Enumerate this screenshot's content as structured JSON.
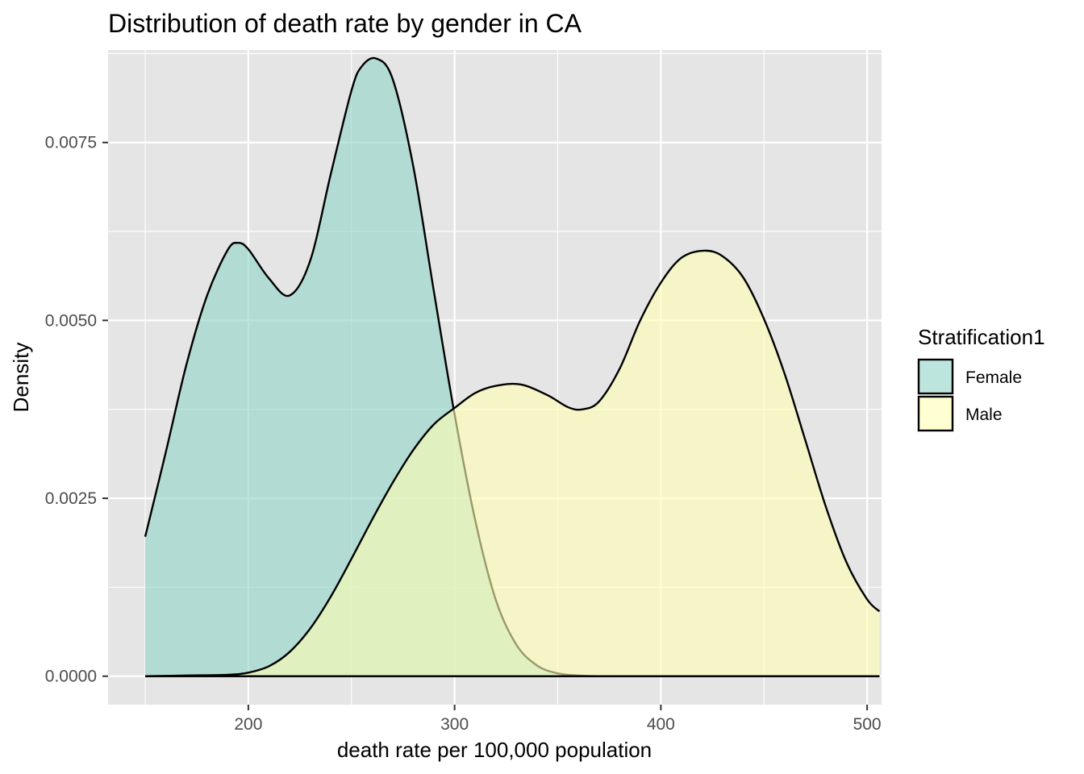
{
  "chart_data": {
    "type": "area",
    "title": "Distribution of death rate by gender in CA",
    "xlabel": "death rate per 100,000 population",
    "ylabel": "Density",
    "xlim": [
      132,
      507
    ],
    "ylim": [
      -0.0004,
      0.0088
    ],
    "x_ticks": [
      200,
      300,
      400,
      500
    ],
    "y_ticks": [
      0.0,
      0.0025,
      0.005,
      0.0075
    ],
    "y_tick_labels": [
      "0.0000",
      "0.0025",
      "0.0050",
      "0.0075"
    ],
    "grid": true,
    "legend": {
      "title": "Stratification1",
      "position": "right"
    },
    "colors": {
      "panel_background": "#e5e5e5",
      "grid": "#ffffff",
      "outline": "#000000"
    },
    "series": [
      {
        "name": "Female",
        "color": "#8dd3c7",
        "opacity": 0.6,
        "x": [
          150,
          160,
          170,
          180,
          190,
          195,
          200,
          210,
          220,
          230,
          240,
          250,
          255,
          262,
          270,
          280,
          290,
          300,
          310,
          320,
          330,
          340,
          350,
          360,
          370,
          380,
          400,
          430,
          450,
          480,
          506
        ],
        "values": [
          0.00196,
          0.00315,
          0.00438,
          0.00535,
          0.00599,
          0.00609,
          0.006,
          0.00559,
          0.00535,
          0.00584,
          0.00706,
          0.00823,
          0.00857,
          0.00868,
          0.00839,
          0.00716,
          0.0054,
          0.00368,
          0.00219,
          0.00107,
          0.00044,
          0.00015,
          4e-05,
          1e-05,
          0.0,
          0.0,
          0.0,
          0.0,
          0.0,
          0.0,
          0.0
        ]
      },
      {
        "name": "Male",
        "color": "#ffffb3",
        "opacity": 0.6,
        "x": [
          150,
          170,
          190,
          200,
          210,
          220,
          230,
          240,
          250,
          260,
          270,
          280,
          290,
          300,
          310,
          320,
          332,
          345,
          355,
          362,
          370,
          380,
          390,
          400,
          410,
          421,
          430,
          440,
          450,
          460,
          470,
          480,
          490,
          500,
          506
        ],
        "values": [
          0.0,
          1e-05,
          2e-05,
          5e-05,
          0.00014,
          0.00034,
          0.00067,
          0.00112,
          0.00165,
          0.0022,
          0.00272,
          0.00318,
          0.00354,
          0.00377,
          0.00398,
          0.00408,
          0.0041,
          0.00395,
          0.00378,
          0.00375,
          0.00386,
          0.00432,
          0.005,
          0.00553,
          0.00588,
          0.00598,
          0.0059,
          0.0056,
          0.00502,
          0.00425,
          0.00332,
          0.00238,
          0.0016,
          0.00108,
          0.00091
        ]
      }
    ]
  }
}
